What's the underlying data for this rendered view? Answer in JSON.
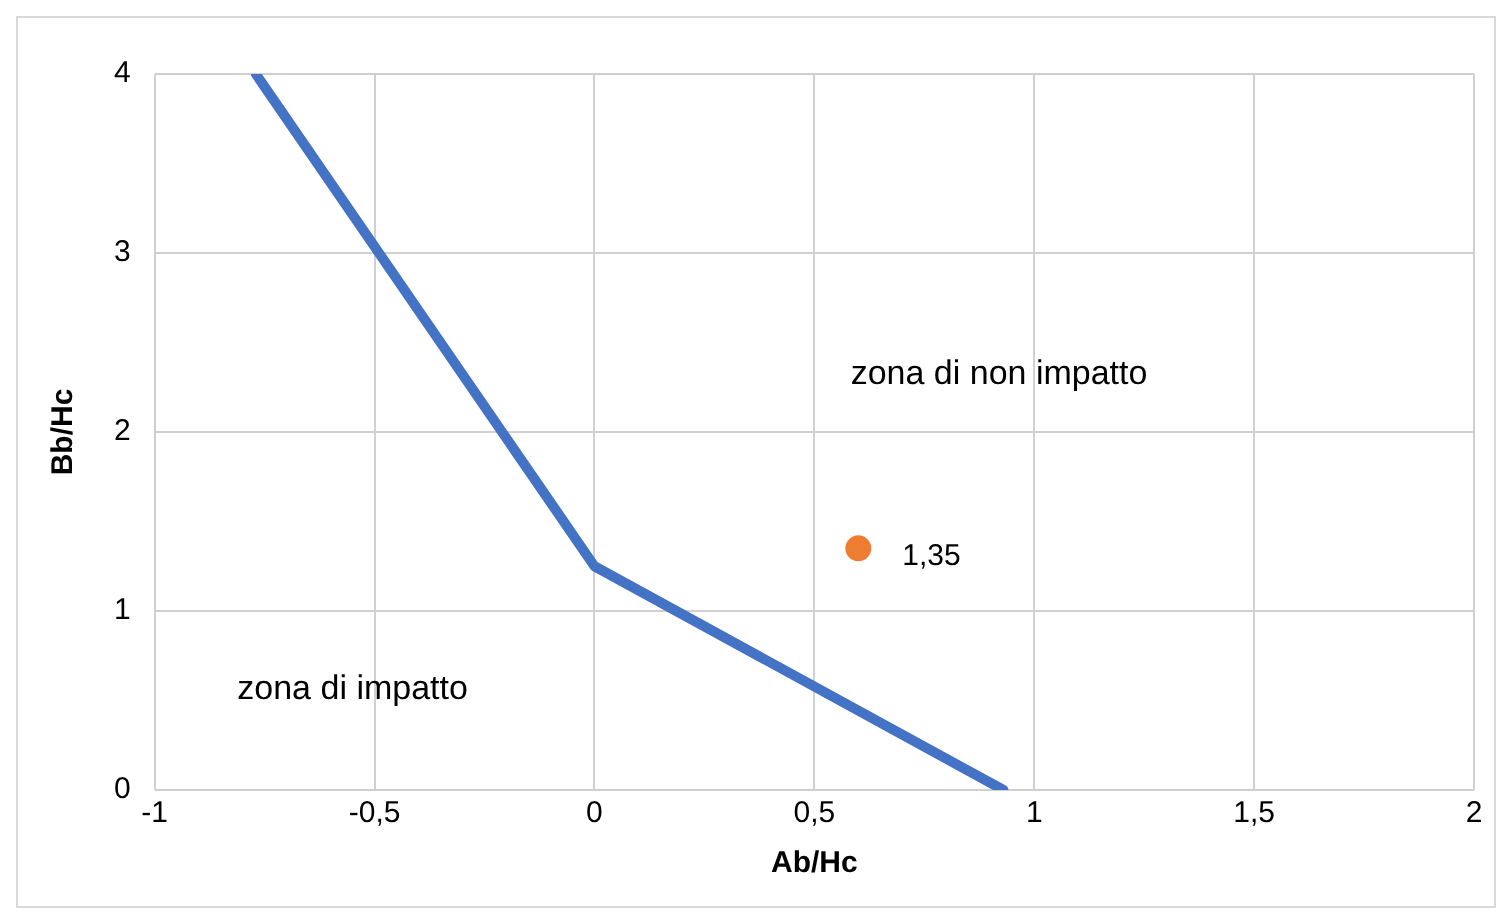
{
  "chart_data": {
    "type": "line",
    "xlabel": "Ab/Hc",
    "ylabel": "Bb/Hc",
    "xlim": [
      -1,
      2
    ],
    "xticks": [
      {
        "value": -1,
        "label": "-1"
      },
      {
        "value": -0.5,
        "label": "-0,5"
      },
      {
        "value": 0,
        "label": "0"
      },
      {
        "value": 0.5,
        "label": "0,5"
      },
      {
        "value": 1,
        "label": "1"
      },
      {
        "value": 1.5,
        "label": "1,5"
      },
      {
        "value": 2,
        "label": "2"
      }
    ],
    "ylim": [
      0,
      4
    ],
    "yticks": [
      0,
      1,
      2,
      3,
      4
    ],
    "grid": true,
    "legend": false,
    "series": [
      {
        "type": "line",
        "color": "#4472c4",
        "x": [
          -0.77,
          0,
          0.93
        ],
        "values": [
          4,
          1.25,
          0
        ],
        "marker": "none"
      },
      {
        "type": "scatter",
        "color": "#ed7d31",
        "x": [
          0.6
        ],
        "values": [
          1.35
        ],
        "marker": "circle",
        "value_labels": [
          "1,35"
        ]
      }
    ],
    "annotations": [
      "zona di non impatto",
      "zona di impatto"
    ]
  }
}
